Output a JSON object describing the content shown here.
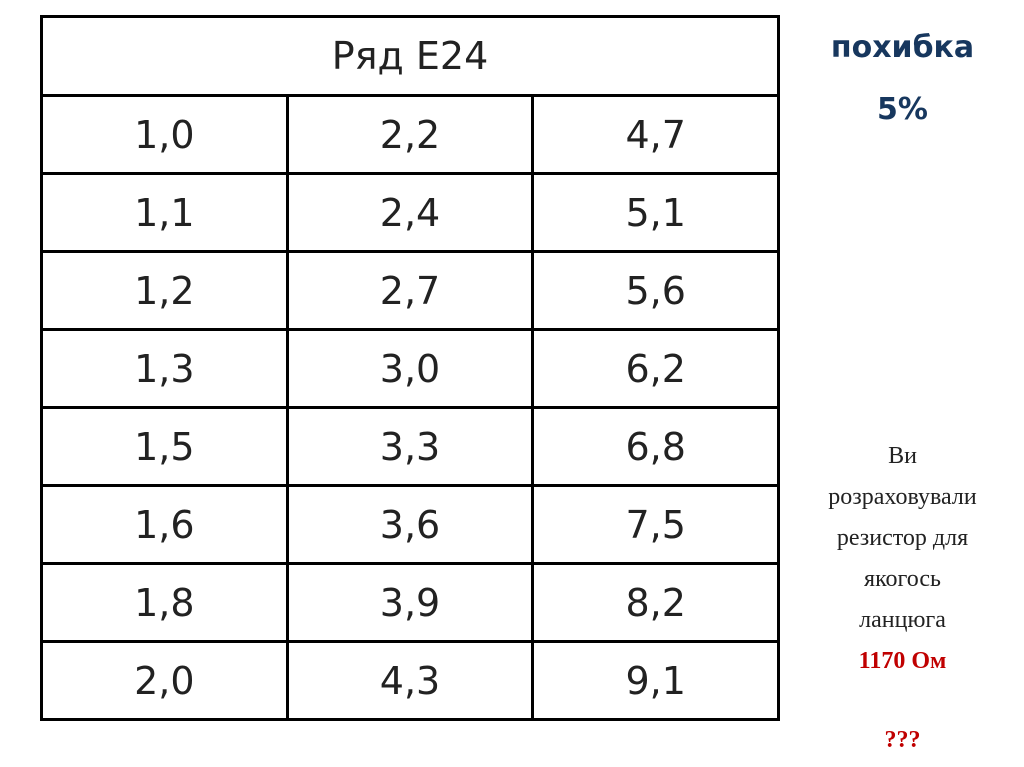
{
  "table": {
    "title": "Ряд Е24",
    "rows": [
      [
        "1,0",
        "2,2",
        "4,7"
      ],
      [
        "1,1",
        "2,4",
        "5,1"
      ],
      [
        "1,2",
        "2,7",
        "5,6"
      ],
      [
        "1,3",
        "3,0",
        "6,2"
      ],
      [
        "1,5",
        "3,3",
        "6,8"
      ],
      [
        "1,6",
        "3,6",
        "7,5"
      ],
      [
        "1,8",
        "3,9",
        "8,2"
      ],
      [
        "2,0",
        "4,3",
        "9,1"
      ]
    ]
  },
  "tolerance": {
    "label": "похибка",
    "value": "5%"
  },
  "note": {
    "lines": [
      "Ви",
      "розраховували",
      "резистор для",
      "якогось",
      "ланцюга"
    ],
    "highlight": "1170 Ом",
    "question": "???"
  }
}
